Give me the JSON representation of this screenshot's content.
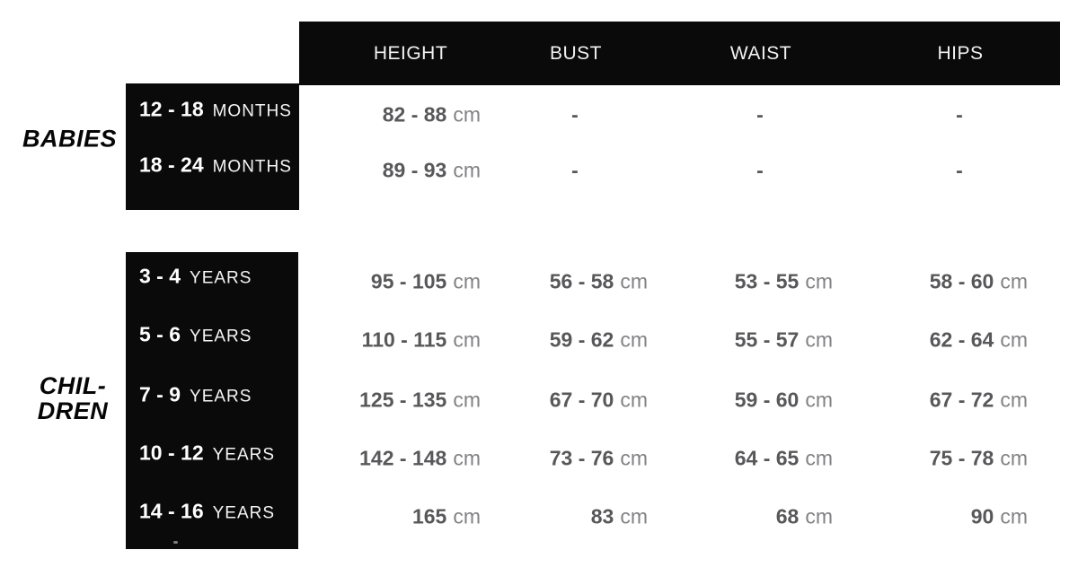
{
  "table": {
    "columns": [
      "HEIGHT",
      "BUST",
      "WAIST",
      "HIPS"
    ],
    "groups": [
      {
        "name": "BABIES",
        "lines": [
          "BABIES"
        ]
      },
      {
        "name": "CHILDREN",
        "lines": [
          "CHIL-",
          "DREN"
        ]
      }
    ],
    "rows": [
      {
        "range": "12 - 18",
        "range_unit": "MONTHS",
        "height": {
          "num": "82 - 88",
          "unit": "cm"
        },
        "bust": {
          "num": "-",
          "unit": ""
        },
        "waist": {
          "num": "-",
          "unit": ""
        },
        "hips": {
          "num": "-",
          "unit": ""
        }
      },
      {
        "range": "18 - 24",
        "range_unit": "MONTHS",
        "height": {
          "num": "89 - 93",
          "unit": "cm"
        },
        "bust": {
          "num": "-",
          "unit": ""
        },
        "waist": {
          "num": "-",
          "unit": ""
        },
        "hips": {
          "num": "-",
          "unit": ""
        }
      },
      {
        "range": "3 - 4",
        "range_unit": "YEARS",
        "height": {
          "num": "95 - 105",
          "unit": "cm"
        },
        "bust": {
          "num": "56 - 58",
          "unit": "cm"
        },
        "waist": {
          "num": "53 - 55",
          "unit": "cm"
        },
        "hips": {
          "num": "58 - 60",
          "unit": "cm"
        }
      },
      {
        "range": "5 - 6",
        "range_unit": "YEARS",
        "height": {
          "num": "110 - 115",
          "unit": "cm"
        },
        "bust": {
          "num": "59 - 62",
          "unit": "cm"
        },
        "waist": {
          "num": "55 - 57",
          "unit": "cm"
        },
        "hips": {
          "num": "62 - 64",
          "unit": "cm"
        }
      },
      {
        "range": "7 - 9",
        "range_unit": "YEARS",
        "height": {
          "num": "125 - 135",
          "unit": "cm"
        },
        "bust": {
          "num": "67 - 70",
          "unit": "cm"
        },
        "waist": {
          "num": "59 - 60",
          "unit": "cm"
        },
        "hips": {
          "num": "67 - 72",
          "unit": "cm"
        }
      },
      {
        "range": "10 - 12",
        "range_unit": "YEARS",
        "height": {
          "num": "142 - 148",
          "unit": "cm"
        },
        "bust": {
          "num": "73 - 76",
          "unit": "cm"
        },
        "waist": {
          "num": "64 - 65",
          "unit": "cm"
        },
        "hips": {
          "num": "75 - 78",
          "unit": "cm"
        }
      },
      {
        "range": "14 - 16",
        "range_unit": "YEARS",
        "height": {
          "num": "165",
          "unit": "cm"
        },
        "bust": {
          "num": "83",
          "unit": "cm"
        },
        "waist": {
          "num": "68",
          "unit": "cm"
        },
        "hips": {
          "num": "90",
          "unit": "cm"
        }
      }
    ]
  },
  "colors": {
    "box_background": "#0a0a0a",
    "header_text": "#f1f1f1",
    "label_text": "#ffffff",
    "value_number": "#58585a",
    "value_unit": "#828285"
  },
  "chart_data": {
    "type": "table",
    "title": "",
    "columns": [
      "",
      "HEIGHT",
      "BUST",
      "WAIST",
      "HIPS"
    ],
    "unit": "cm",
    "groups": [
      {
        "group": "BABIES",
        "rows": [
          {
            "size": "12 - 18 MONTHS",
            "height": "82 - 88 cm",
            "bust": "-",
            "waist": "-",
            "hips": "-"
          },
          {
            "size": "18 - 24 MONTHS",
            "height": "89 - 93 cm",
            "bust": "-",
            "waist": "-",
            "hips": "-"
          }
        ]
      },
      {
        "group": "CHILDREN",
        "rows": [
          {
            "size": "3 - 4 YEARS",
            "height": "95 - 105 cm",
            "bust": "56 - 58 cm",
            "waist": "53 - 55 cm",
            "hips": "58 - 60 cm"
          },
          {
            "size": "5 - 6 YEARS",
            "height": "110 - 115 cm",
            "bust": "59 - 62 cm",
            "waist": "55 - 57 cm",
            "hips": "62 - 64 cm"
          },
          {
            "size": "7 - 9 YEARS",
            "height": "125 - 135 cm",
            "bust": "67 - 70 cm",
            "waist": "59 - 60 cm",
            "hips": "67 - 72 cm"
          },
          {
            "size": "10 - 12 YEARS",
            "height": "142 - 148 cm",
            "bust": "73 - 76 cm",
            "waist": "64 - 65 cm",
            "hips": "75 - 78 cm"
          },
          {
            "size": "14 - 16 YEARS",
            "height": "165 cm",
            "bust": "83 cm",
            "waist": "68 cm",
            "hips": "90 cm"
          }
        ]
      }
    ]
  }
}
